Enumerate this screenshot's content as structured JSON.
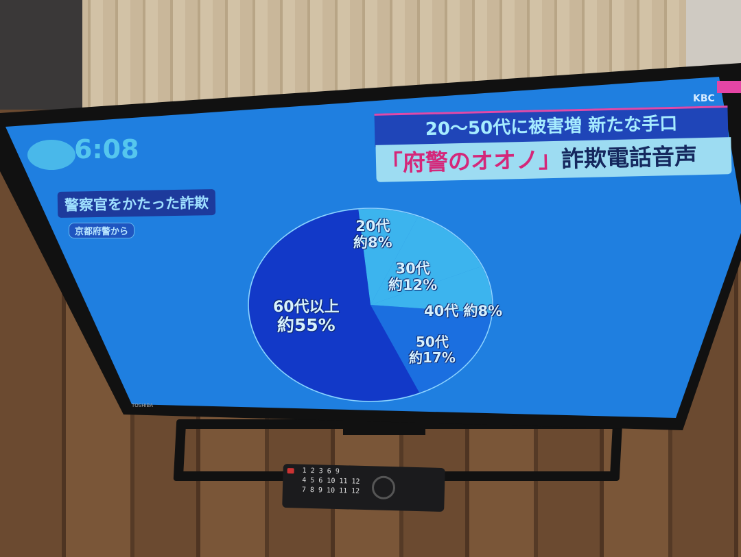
{
  "scene": {
    "tv_brand": "TOSHIBA",
    "remote_keys": [
      "1 2 3 6 9",
      "4 5 6 10 11 12",
      "7 8 9 10 11 12"
    ]
  },
  "broadcast": {
    "channel_logo": "KBC",
    "clock": "6:08",
    "headline_top": "20～50代に被害増 新たな手口",
    "headline_main_quote": "「府警のオオノ」",
    "headline_main_rest": "詐欺電話音声",
    "topic_label": "警察官をかたった詐欺",
    "source_label": "京都府警から",
    "colors": {
      "screen_bg": "#1f7fe0",
      "headline_accent": "#d4277a",
      "pie_light": "#3cb4ee",
      "pie_mid": "#1b6fe0",
      "pie_dark": "#1239c8"
    }
  },
  "chart_data": {
    "type": "pie",
    "slices": [
      {
        "label": "20代",
        "value_label": "約8%",
        "value": 8,
        "color": "#3cb4ee"
      },
      {
        "label": "30代",
        "value_label": "約12%",
        "value": 12,
        "color": "#3cb4ee"
      },
      {
        "label": "40代",
        "value_label": "約8%",
        "value": 8,
        "color": "#3cb4ee"
      },
      {
        "label": "50代",
        "value_label": "約17%",
        "value": 17,
        "color": "#1b6fe0"
      },
      {
        "label": "60代以上",
        "value_label": "約55%",
        "value": 55,
        "color": "#1239c8"
      }
    ]
  }
}
